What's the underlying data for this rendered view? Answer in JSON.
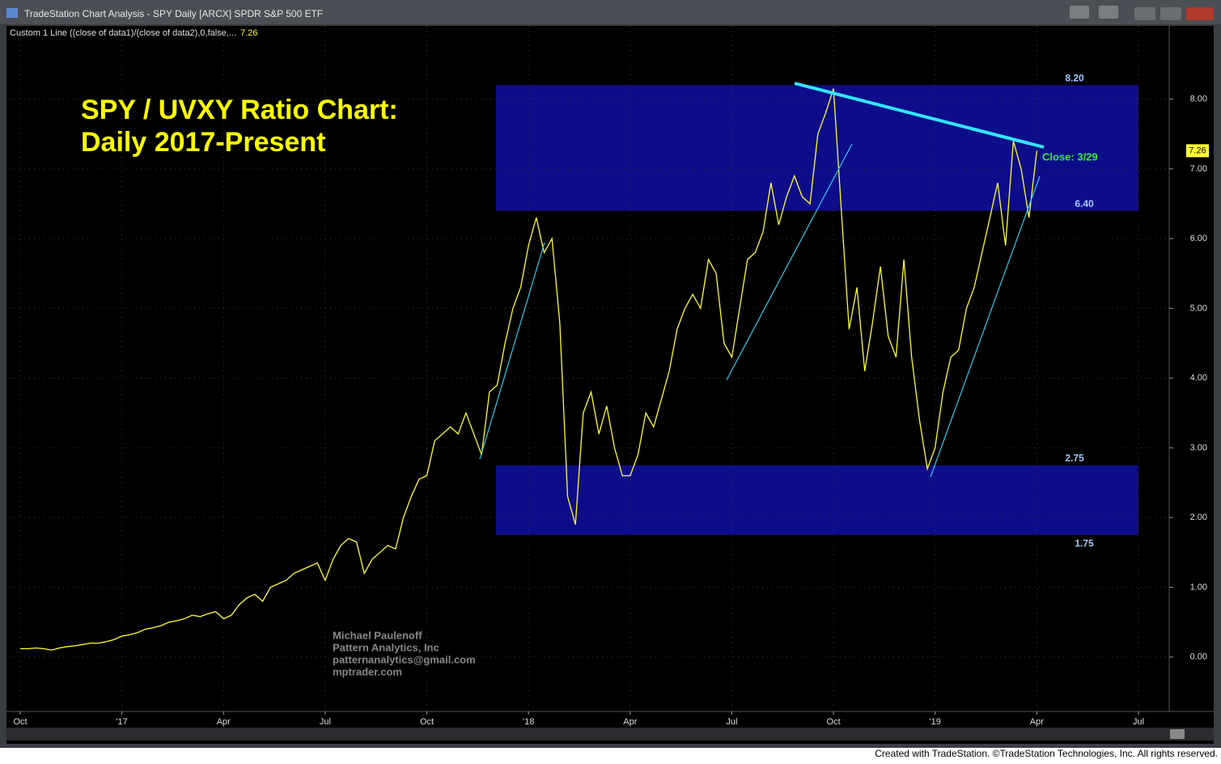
{
  "window_title": "TradeStation Chart Analysis - SPY Daily [ARCX] SPDR S&P 500 ETF",
  "indicator_label": "Custom 1 Line ((close of data1)/(close of data2),0,false,...",
  "footer": "Created with TradeStation. ©TradeStation Technologies, Inc. All rights reserved.",
  "chart_data": {
    "type": "line",
    "title": "SPY / UVXY Ratio Chart:",
    "subtitle": "Daily 2017-Present",
    "annotation": "Close: 3/29",
    "watermark": [
      "Michael Paulenoff",
      "Pattern Analytics, Inc",
      "patternanalytics@gmail.com",
      "mptrader.com"
    ],
    "categories": [
      "Oct",
      null,
      null,
      null,
      null,
      null,
      null,
      null,
      null,
      null,
      null,
      null,
      null,
      "'17",
      null,
      null,
      null,
      null,
      null,
      null,
      null,
      null,
      null,
      null,
      null,
      null,
      "Apr",
      null,
      null,
      null,
      null,
      null,
      null,
      null,
      null,
      null,
      null,
      null,
      null,
      "Jul",
      null,
      null,
      null,
      null,
      null,
      null,
      null,
      null,
      null,
      null,
      null,
      null,
      "Oct",
      null,
      null,
      null,
      null,
      null,
      null,
      null,
      null,
      null,
      null,
      null,
      null,
      "'18",
      null,
      null,
      null,
      null,
      null,
      null,
      null,
      null,
      null,
      null,
      null,
      null,
      "Apr",
      null,
      null,
      null,
      null,
      null,
      null,
      null,
      null,
      null,
      null,
      null,
      null,
      "Jul",
      null,
      null,
      null,
      null,
      null,
      null,
      null,
      null,
      null,
      null,
      null,
      null,
      "Oct",
      null,
      null,
      null,
      null,
      null,
      null,
      null,
      null,
      null,
      null,
      null,
      null,
      "'19",
      null,
      null,
      null,
      null,
      null,
      null,
      null,
      null,
      null,
      null,
      null,
      null,
      "Apr",
      null,
      null,
      null,
      null,
      null,
      null,
      null,
      null,
      null,
      null,
      null,
      null,
      "Jul"
    ],
    "series": [
      {
        "name": "SPY / UVXY",
        "color": "#ffff33",
        "values": [
          0.12,
          0.12,
          0.13,
          0.12,
          0.1,
          0.13,
          0.15,
          0.16,
          0.18,
          0.2,
          0.2,
          0.22,
          0.25,
          0.3,
          0.32,
          0.35,
          0.4,
          0.42,
          0.45,
          0.5,
          0.52,
          0.55,
          0.6,
          0.58,
          0.62,
          0.65,
          0.55,
          0.6,
          0.75,
          0.85,
          0.9,
          0.8,
          1.0,
          1.05,
          1.1,
          1.2,
          1.25,
          1.3,
          1.35,
          1.1,
          1.4,
          1.6,
          1.7,
          1.65,
          1.2,
          1.4,
          1.5,
          1.6,
          1.55,
          2.0,
          2.3,
          2.55,
          2.6,
          3.1,
          3.2,
          3.3,
          3.2,
          3.5,
          3.2,
          2.9,
          3.8,
          3.9,
          4.5,
          5.0,
          5.3,
          5.9,
          6.3,
          5.8,
          6.0,
          4.8,
          2.3,
          1.9,
          3.5,
          3.8,
          3.2,
          3.6,
          3.0,
          2.6,
          2.6,
          2.9,
          3.5,
          3.3,
          3.7,
          4.1,
          4.7,
          5.0,
          5.2,
          5.0,
          5.7,
          5.5,
          4.5,
          4.3,
          5.0,
          5.7,
          5.8,
          6.1,
          6.8,
          6.2,
          6.6,
          6.9,
          6.6,
          6.5,
          7.5,
          7.8,
          8.15,
          6.4,
          4.7,
          5.3,
          4.1,
          4.8,
          5.6,
          4.6,
          4.3,
          5.7,
          4.3,
          3.4,
          2.7,
          3.0,
          3.8,
          4.3,
          4.4,
          5.0,
          5.3,
          5.8,
          6.3,
          6.8,
          5.9,
          7.4,
          7.0,
          6.3,
          7.26,
          null,
          null,
          null,
          null,
          null,
          null,
          null,
          null,
          null,
          null,
          null,
          null,
          null
        ]
      }
    ],
    "bands": [
      {
        "top": {
          "value": 8.2,
          "label": "8.20"
        },
        "bottom": {
          "value": 6.4,
          "label": "6.40"
        },
        "color": "#0d0d8a"
      },
      {
        "top": {
          "value": 2.75,
          "label": "2.75"
        },
        "bottom": {
          "value": 1.75,
          "label": "1.75"
        },
        "color": "#0d0d8a"
      }
    ],
    "ylim": [
      -0.78,
      9.05
    ],
    "yticks": [
      {
        "value": 0,
        "label": "0.00"
      },
      {
        "value": 1,
        "label": "1.00"
      },
      {
        "value": 2,
        "label": "2.00"
      },
      {
        "value": 3,
        "label": "3.00"
      },
      {
        "value": 4,
        "label": "4.00"
      },
      {
        "value": 5,
        "label": "5.00"
      },
      {
        "value": 6,
        "label": "6.00"
      },
      {
        "value": 7,
        "label": "7.00"
      },
      {
        "value": 8,
        "label": "8.00"
      }
    ],
    "grid": true
  }
}
